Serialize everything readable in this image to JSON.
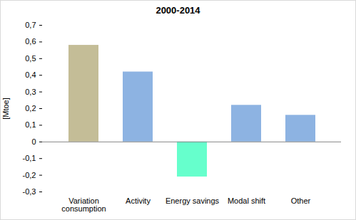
{
  "chart_data": {
    "type": "bar",
    "title": "2000-2014",
    "y_label": "[Mtoe]",
    "categories": [
      "Variation consumption",
      "Activity",
      "Energy savings",
      "Modal shift",
      "Other"
    ],
    "values": [
      0.58,
      0.42,
      -0.21,
      0.22,
      0.16
    ],
    "colors": [
      "#c4bd97",
      "#8db3e2",
      "#66ffcc",
      "#8db3e2",
      "#8db3e2"
    ],
    "ylim": [
      -0.3,
      0.7
    ],
    "yticks": [
      {
        "value": -0.3,
        "label": "-0,3"
      },
      {
        "value": -0.2,
        "label": "-0,2"
      },
      {
        "value": -0.1,
        "label": "-0,1"
      },
      0,
      {
        "value": 0.1,
        "label": "0,1"
      },
      {
        "value": 0.2,
        "label": "0,2"
      },
      {
        "value": 0.3,
        "label": "0,3"
      },
      {
        "value": 0.4,
        "label": "0,4"
      },
      {
        "value": 0.5,
        "label": "0,5"
      },
      {
        "value": 0.6,
        "label": "0,6"
      },
      {
        "value": 0.7,
        "label": "0,7"
      }
    ],
    "grid": false
  }
}
